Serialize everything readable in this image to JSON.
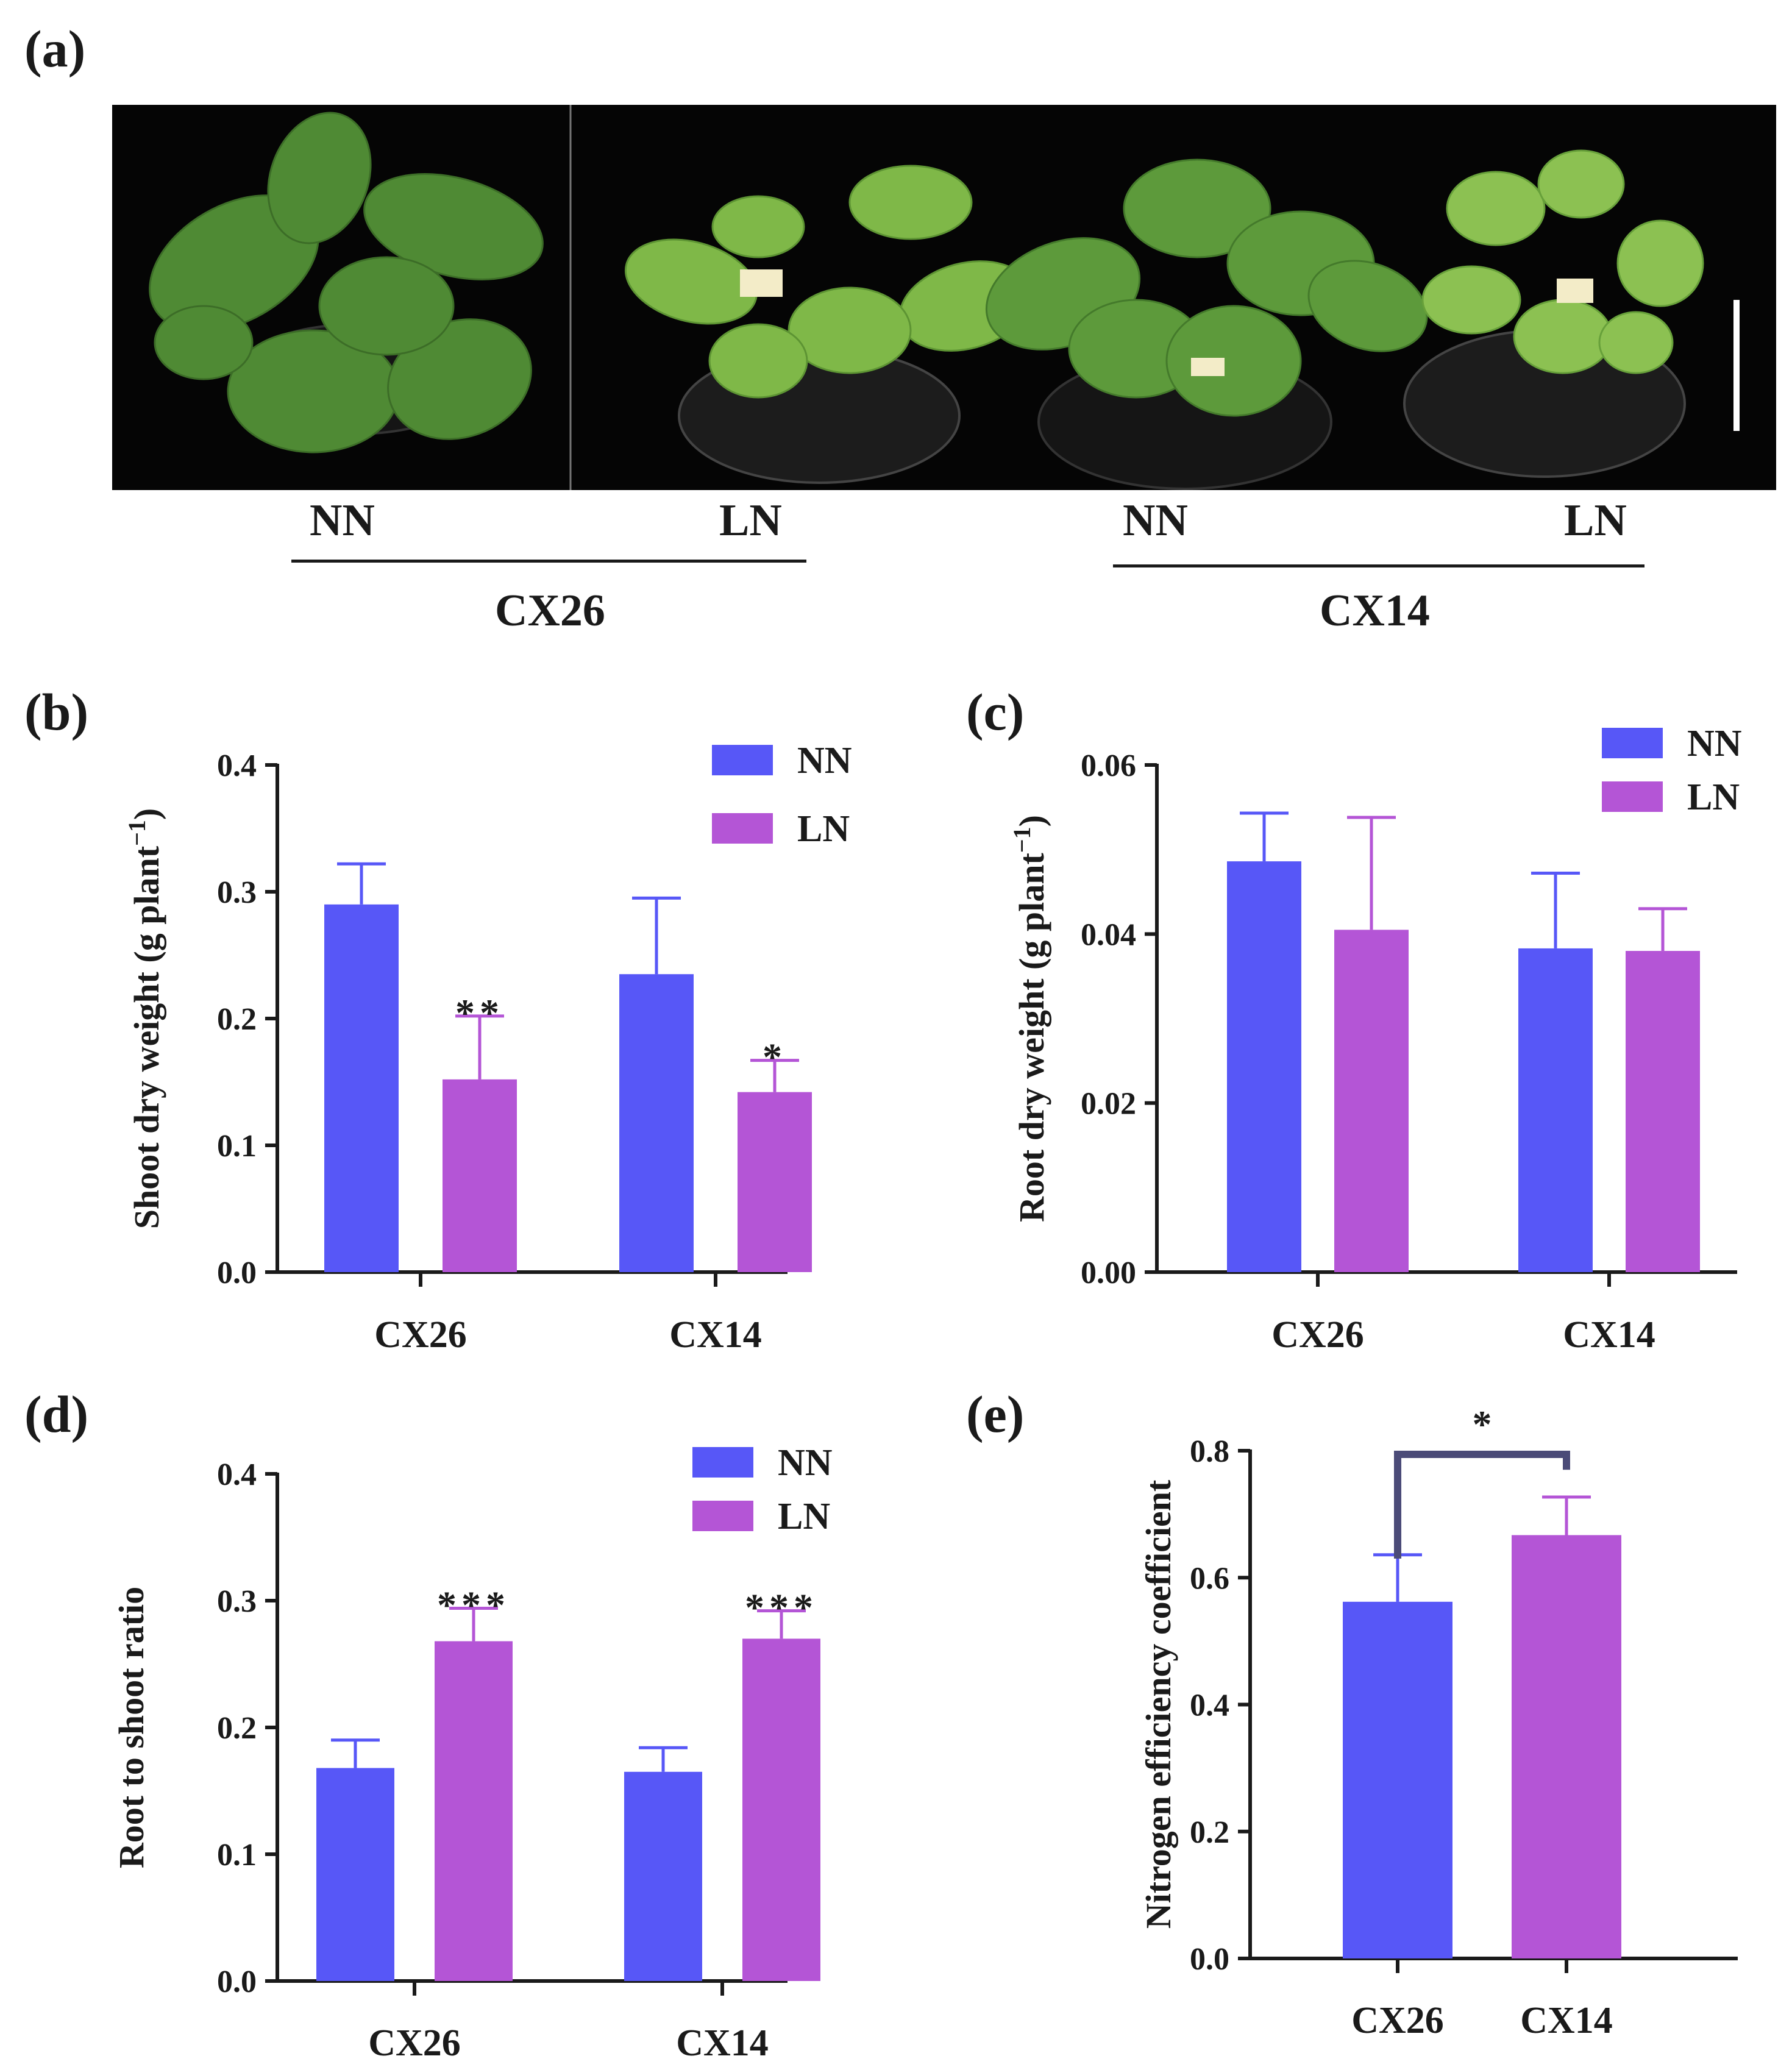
{
  "panels": {
    "a": {
      "letter": "(a)",
      "image_description": "Tobacco seedlings photographed on black background",
      "cond_nn_1": "NN",
      "cond_ln_1": "LN",
      "cond_nn_2": "NN",
      "cond_ln_2": "LN",
      "cultivar_1": "CX26",
      "cultivar_2": "CX14"
    },
    "b": {
      "letter": "(b)"
    },
    "c": {
      "letter": "(c)"
    },
    "d": {
      "letter": "(d)"
    },
    "e": {
      "letter": "(e)"
    }
  },
  "colors": {
    "NN": "#5757f7",
    "LN": "#b455d6",
    "axis": "#1a1a1a",
    "bracket": "#4b4b78"
  },
  "chart_data": [
    {
      "id": "b",
      "type": "bar",
      "ylabel": "Shoot dry weight (g plant",
      "ylabel_sup": "−1",
      "ylabel_end": ")",
      "ylim": [
        0,
        0.4
      ],
      "yticks": [
        "0.0",
        "0.1",
        "0.2",
        "0.3",
        "0.4"
      ],
      "categories": [
        "CX26",
        "CX14"
      ],
      "legend": [
        "NN",
        "LN"
      ],
      "series": [
        {
          "name": "NN",
          "values": [
            0.29,
            0.235
          ],
          "errors": [
            0.032,
            0.06
          ]
        },
        {
          "name": "LN",
          "values": [
            0.152,
            0.142
          ],
          "errors": [
            0.05,
            0.025
          ]
        }
      ],
      "annotations": [
        {
          "series": "LN",
          "category": "CX26",
          "text": "**"
        },
        {
          "series": "LN",
          "category": "CX14",
          "text": "*"
        }
      ]
    },
    {
      "id": "c",
      "type": "bar",
      "ylabel": "Root dry weight (g plant",
      "ylabel_sup": "−1",
      "ylabel_end": ")",
      "ylim": [
        0,
        0.06
      ],
      "yticks": [
        "0.00",
        "0.02",
        "0.04",
        "0.06"
      ],
      "categories": [
        "CX26",
        "CX14"
      ],
      "legend": [
        "NN",
        "LN"
      ],
      "series": [
        {
          "name": "NN",
          "values": [
            0.0486,
            0.0383
          ],
          "errors": [
            0.0057,
            0.0089
          ]
        },
        {
          "name": "LN",
          "values": [
            0.0405,
            0.038
          ],
          "errors": [
            0.0133,
            0.005
          ]
        }
      ],
      "annotations": []
    },
    {
      "id": "d",
      "type": "bar",
      "ylabel": "Root to shoot ratio",
      "ylim": [
        0,
        0.4
      ],
      "yticks": [
        "0.0",
        "0.1",
        "0.2",
        "0.3",
        "0.4"
      ],
      "categories": [
        "CX26",
        "CX14"
      ],
      "legend": [
        "NN",
        "LN"
      ],
      "series": [
        {
          "name": "NN",
          "values": [
            0.168,
            0.165
          ],
          "errors": [
            0.022,
            0.019
          ]
        },
        {
          "name": "LN",
          "values": [
            0.268,
            0.27
          ],
          "errors": [
            0.026,
            0.022
          ]
        }
      ],
      "annotations": [
        {
          "series": "LN",
          "category": "CX26",
          "text": "***"
        },
        {
          "series": "LN",
          "category": "CX14",
          "text": "***"
        }
      ]
    },
    {
      "id": "e",
      "type": "bar",
      "ylabel": "Nitrogen efficiency coefficient",
      "ylim": [
        0,
        0.8
      ],
      "yticks": [
        "0.0",
        "0.2",
        "0.4",
        "0.6",
        "0.8"
      ],
      "categories": [
        "CX26",
        "CX14"
      ],
      "values": [
        0.562,
        0.667
      ],
      "errors": [
        0.074,
        0.06
      ],
      "bar_colors": [
        "NN",
        "LN"
      ],
      "significance": {
        "between": [
          "CX26",
          "CX14"
        ],
        "text": "*"
      }
    }
  ]
}
